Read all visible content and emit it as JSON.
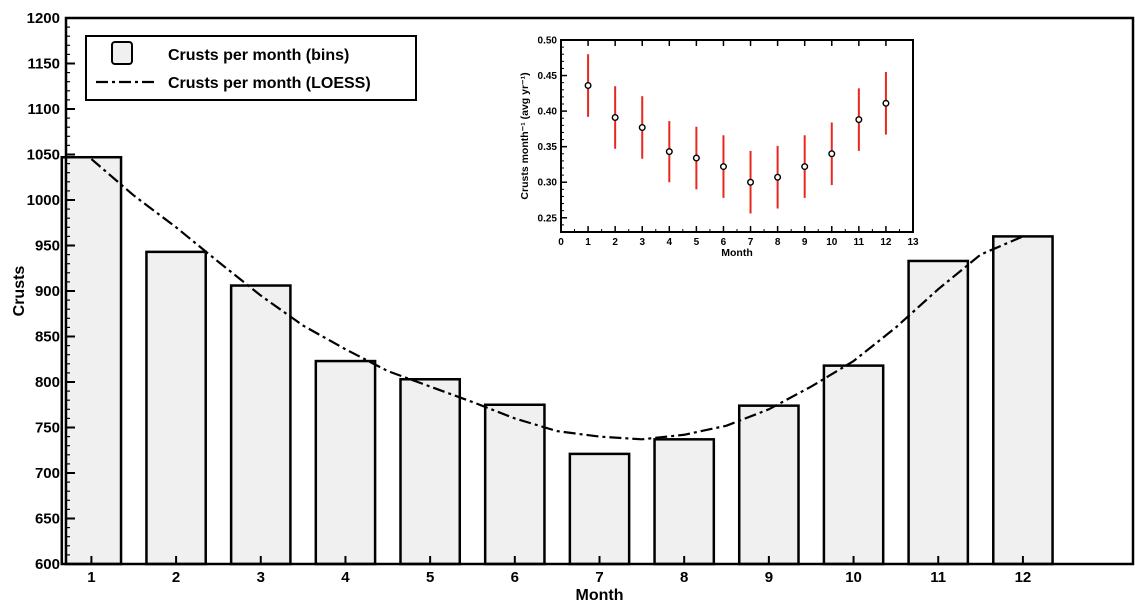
{
  "chart_data": [
    {
      "type": "bar",
      "xlabel": "Month",
      "ylabel": "Crusts",
      "ylim": [
        600,
        1200
      ],
      "yticks": [
        600,
        650,
        700,
        750,
        800,
        850,
        900,
        950,
        1000,
        1050,
        1100,
        1150,
        1200
      ],
      "categories": [
        "1",
        "2",
        "3",
        "4",
        "5",
        "6",
        "7",
        "8",
        "9",
        "10",
        "11",
        "12"
      ],
      "series": [
        {
          "name": "Crusts per month (bins)",
          "type": "bar",
          "color": "#f0f0f0",
          "values": [
            1047,
            943,
            906,
            823,
            803,
            775,
            721,
            737,
            774,
            818,
            933,
            960
          ]
        },
        {
          "name": "Crusts per month (LOESS)",
          "type": "line",
          "style": "dash-dot",
          "x": [
            1,
            1.5,
            2,
            2.5,
            3,
            3.5,
            4,
            4.5,
            5,
            5.5,
            6,
            6.5,
            7,
            7.5,
            8,
            8.5,
            9,
            9.5,
            10,
            10.5,
            11,
            11.5,
            12
          ],
          "values": [
            1045,
            1005,
            970,
            932,
            895,
            862,
            836,
            812,
            795,
            778,
            760,
            746,
            740,
            737,
            742,
            752,
            770,
            795,
            823,
            860,
            902,
            940,
            960
          ]
        }
      ],
      "legend_position": "top-left",
      "grid": false
    },
    {
      "type": "scatter",
      "placement": "inset-top-center",
      "xlabel": "Month",
      "ylabel": "Crusts month⁻¹ (avg yr⁻¹)",
      "xlim": [
        0,
        13
      ],
      "ylim": [
        0.23,
        0.5
      ],
      "xticks": [
        0,
        1,
        2,
        3,
        4,
        5,
        6,
        7,
        8,
        9,
        10,
        11,
        12,
        13
      ],
      "yticks": [
        0.25,
        0.3,
        0.35,
        0.4,
        0.45,
        0.5
      ],
      "ytick_labels": [
        "0.25",
        "0.30",
        "0.35",
        "0.40",
        "0.45",
        "0.50"
      ],
      "error_color": "#e8281e",
      "points": [
        {
          "x": 1,
          "y": 0.436,
          "err": 0.044
        },
        {
          "x": 2,
          "y": 0.391,
          "err": 0.044
        },
        {
          "x": 3,
          "y": 0.377,
          "err": 0.044
        },
        {
          "x": 4,
          "y": 0.343,
          "err": 0.043
        },
        {
          "x": 5,
          "y": 0.334,
          "err": 0.044
        },
        {
          "x": 6,
          "y": 0.322,
          "err": 0.044
        },
        {
          "x": 7,
          "y": 0.3,
          "err": 0.044
        },
        {
          "x": 8,
          "y": 0.307,
          "err": 0.044
        },
        {
          "x": 9,
          "y": 0.322,
          "err": 0.044
        },
        {
          "x": 10,
          "y": 0.34,
          "err": 0.044
        },
        {
          "x": 11,
          "y": 0.388,
          "err": 0.044
        },
        {
          "x": 12,
          "y": 0.411,
          "err": 0.044
        }
      ],
      "grid": false
    }
  ]
}
